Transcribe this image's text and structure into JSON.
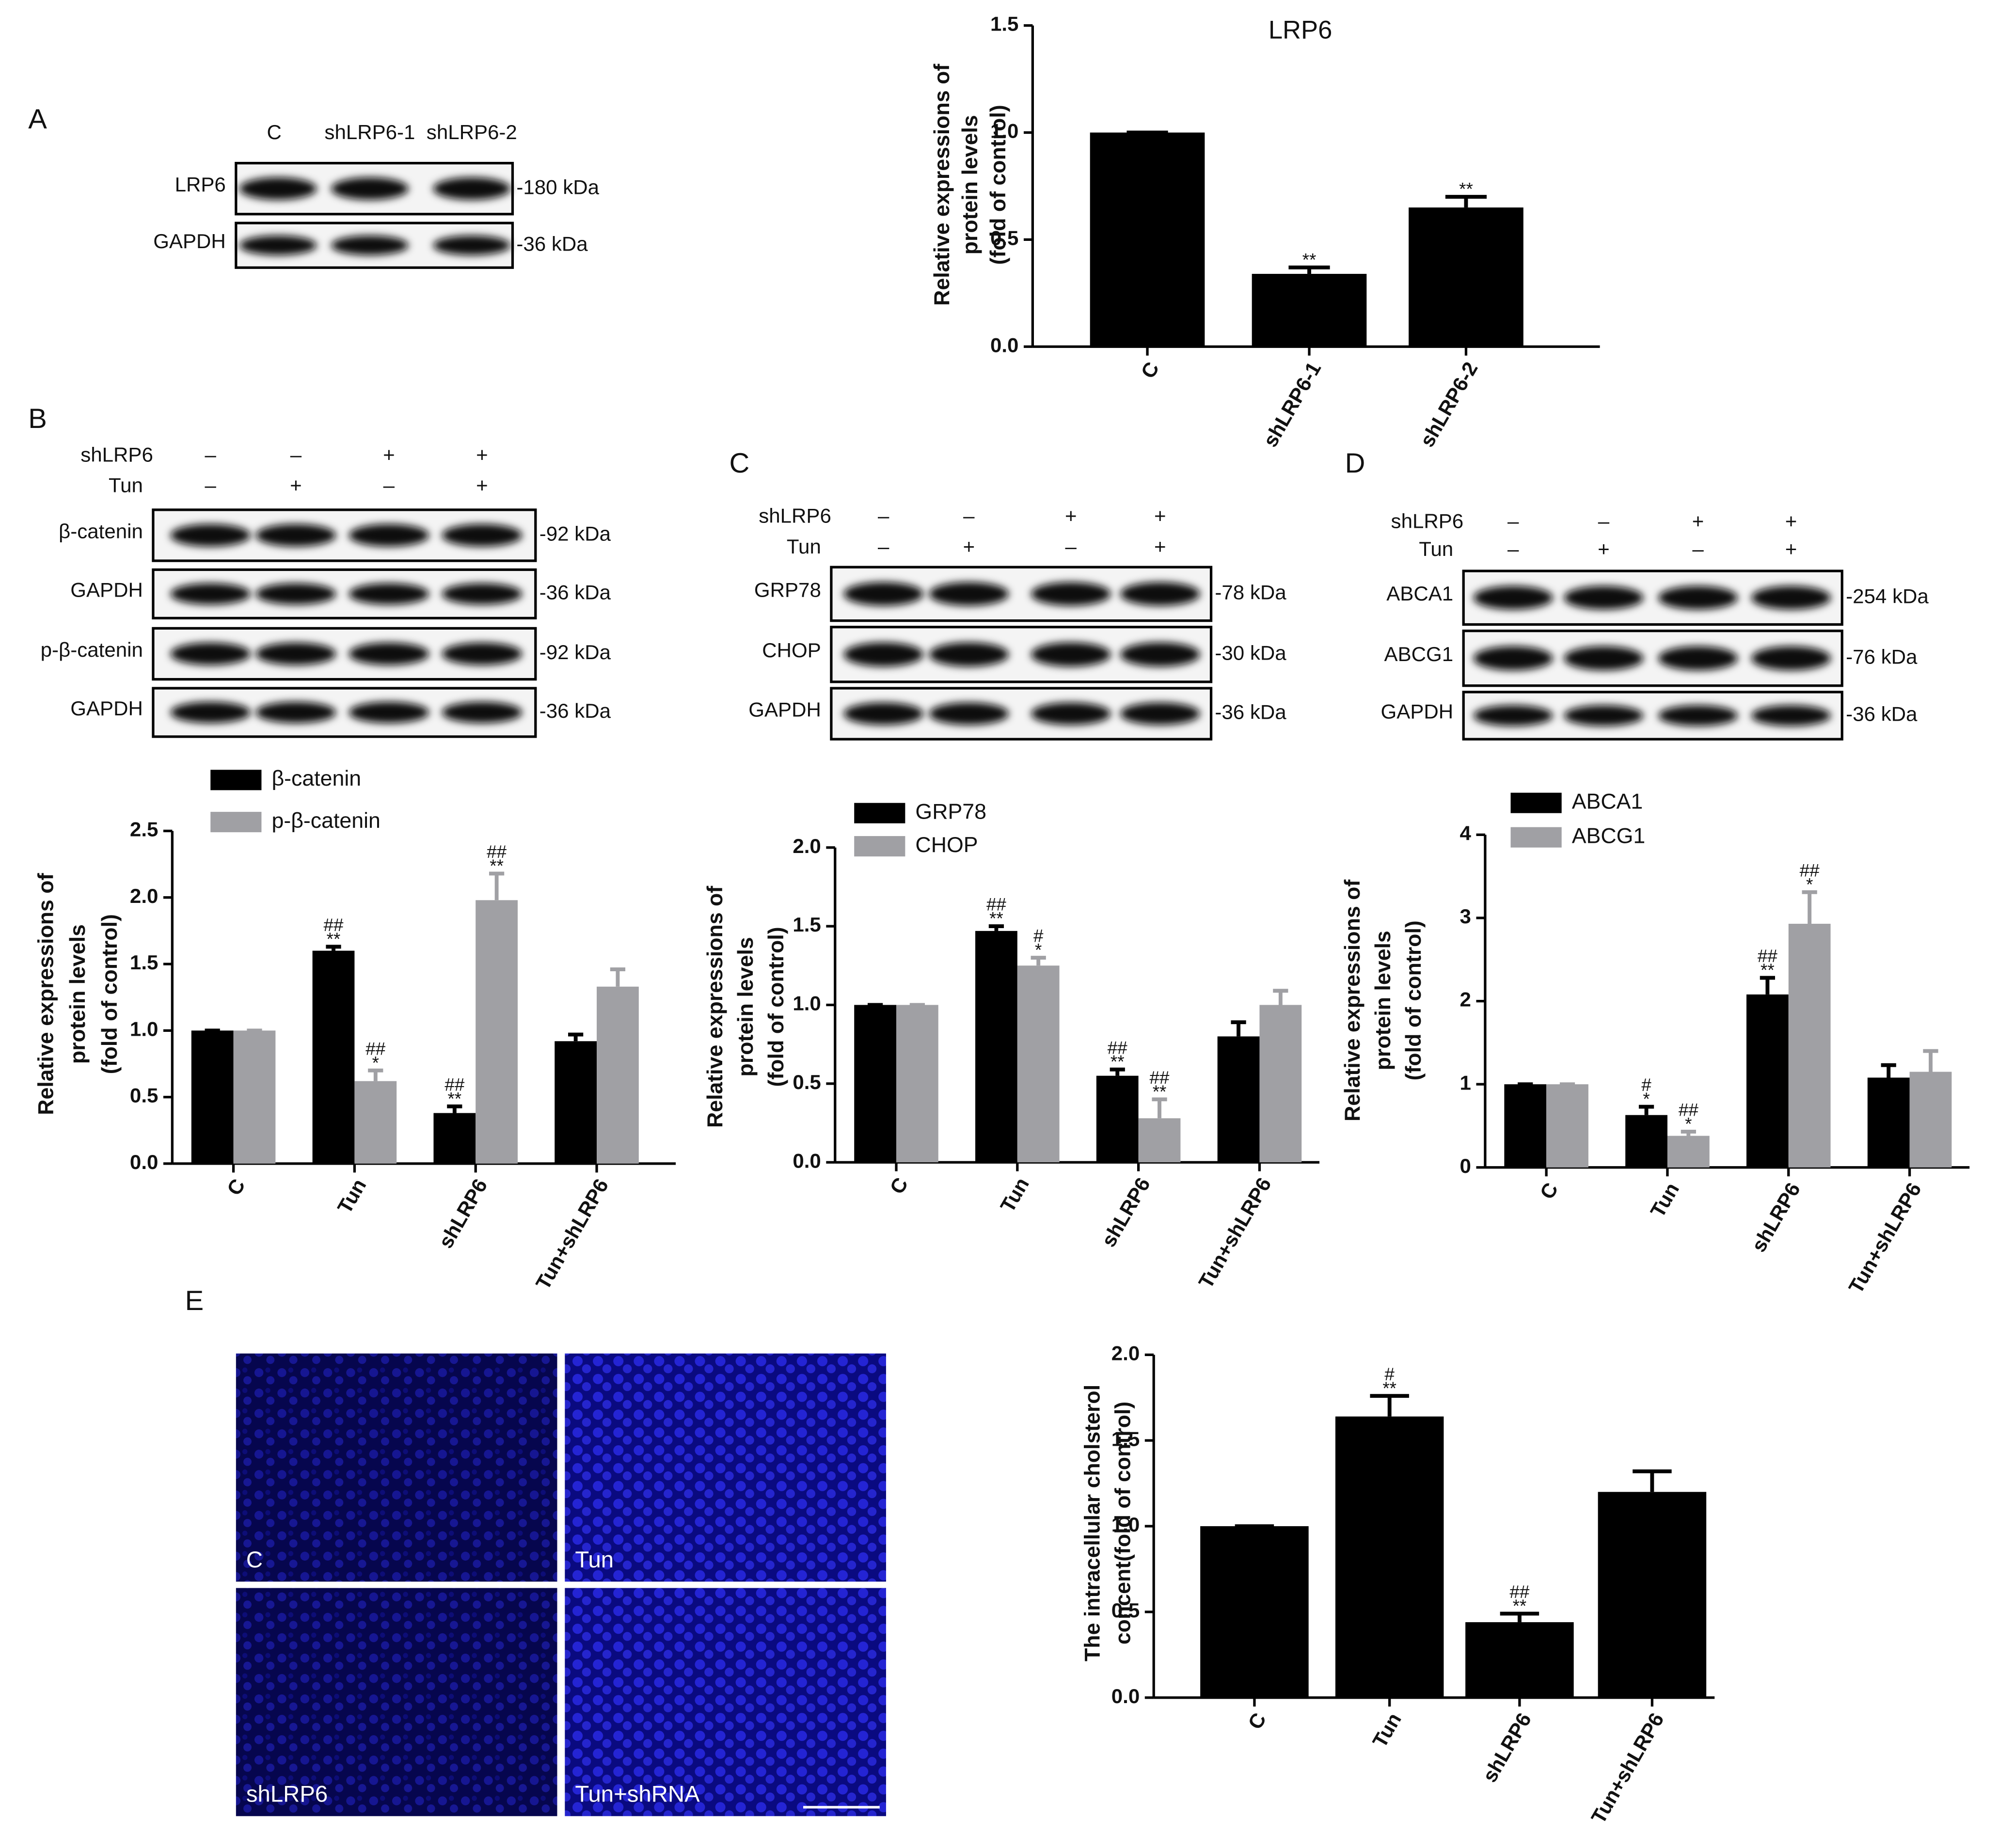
{
  "panel_labels": [
    "A",
    "B",
    "C",
    "D",
    "E"
  ],
  "blots": [
    {
      "lanes": [
        "C",
        "shLRP6-1",
        "shLRP6-2"
      ],
      "rows": [
        {
          "name": "LRP6",
          "size": "-180 kDa"
        },
        {
          "name": "GAPDH",
          "size": "-36 kDa"
        }
      ]
    },
    {
      "treatments": [
        {
          "name": "shLRP6",
          "signs": [
            "–",
            "–",
            "+",
            "+"
          ]
        },
        {
          "name": "Tun",
          "signs": [
            "–",
            "+",
            "–",
            "+"
          ]
        }
      ],
      "rows": [
        {
          "name": "β-catenin",
          "size": "-92 kDa"
        },
        {
          "name": "GAPDH",
          "size": "-36 kDa"
        },
        {
          "name": "p-β-catenin",
          "size": "-92 kDa"
        },
        {
          "name": "GAPDH",
          "size": "-36 kDa"
        }
      ]
    },
    {
      "treatments": [
        {
          "name": "shLRP6",
          "signs": [
            "–",
            "–",
            "+",
            "+"
          ]
        },
        {
          "name": "Tun",
          "signs": [
            "–",
            "+",
            "–",
            "+"
          ]
        }
      ],
      "rows": [
        {
          "name": "GRP78",
          "size": "-78 kDa"
        },
        {
          "name": "CHOP",
          "size": "-30 kDa"
        },
        {
          "name": "GAPDH",
          "size": "-36 kDa"
        }
      ]
    },
    {
      "treatments": [
        {
          "name": "shLRP6",
          "signs": [
            "–",
            "–",
            "+",
            "+"
          ]
        },
        {
          "name": "Tun",
          "signs": [
            "–",
            "+",
            "–",
            "+"
          ]
        }
      ],
      "rows": [
        {
          "name": "ABCA1",
          "size": "-254 kDa"
        },
        {
          "name": "ABCG1",
          "size": "-76 kDa"
        },
        {
          "name": "GAPDH",
          "size": "-36 kDa"
        }
      ]
    }
  ],
  "micrographs": [
    "C",
    "Tun",
    "shLRP6",
    "Tun+shRNA"
  ],
  "chart_data": [
    {
      "type": "bar",
      "title": "LRP6",
      "ylabel": [
        "Relative expressions of",
        "protein levels",
        "(fold of control)"
      ],
      "categories": [
        "C",
        "shLRP6-1",
        "shLRP6-2"
      ],
      "values": [
        1.0,
        0.34,
        0.65
      ],
      "errors": [
        0,
        0.03,
        0.05
      ],
      "annotations": [
        null,
        [
          "**"
        ],
        [
          "**"
        ]
      ],
      "color": "#000000",
      "ylim": [
        0,
        1.5
      ],
      "yticks": [
        {
          "value": 0,
          "label": "0.0"
        },
        {
          "value": 0.5,
          "label": "0.5"
        },
        {
          "value": 1,
          "label": "1.0"
        },
        {
          "value": 1.5,
          "label": "1.5"
        }
      ]
    },
    {
      "type": "bar",
      "ylabel": [
        "Relative expressions of",
        "protein levels",
        "(fold of control)"
      ],
      "categories": [
        "C",
        "Tun",
        "shLRP6",
        "Tun+shLRP6"
      ],
      "series": [
        {
          "name": "β-catenin",
          "color": "#000000",
          "values": [
            1.0,
            1.6,
            0.38,
            0.92
          ],
          "errors": [
            0,
            0.03,
            0.05,
            0.05
          ],
          "annotations": [
            null,
            [
              "##",
              "**"
            ],
            [
              "##",
              "**"
            ],
            null
          ]
        },
        {
          "name": "p-β-catenin",
          "color": "#a0a0a4",
          "values": [
            1.0,
            0.62,
            1.98,
            1.33
          ],
          "errors": [
            0,
            0.08,
            0.2,
            0.13
          ],
          "annotations": [
            null,
            [
              "##",
              "*"
            ],
            [
              "##",
              "**"
            ],
            null
          ]
        }
      ],
      "ylim": [
        0,
        2.5
      ],
      "yticks": [
        {
          "value": 0,
          "label": "0.0"
        },
        {
          "value": 0.5,
          "label": "0.5"
        },
        {
          "value": 1,
          "label": "1.0"
        },
        {
          "value": 1.5,
          "label": "1.5"
        },
        {
          "value": 2,
          "label": "2.0"
        },
        {
          "value": 2.5,
          "label": "2.5"
        }
      ]
    },
    {
      "type": "bar",
      "ylabel": [
        "Relative expressions of",
        "protein levels",
        "(fold of control)"
      ],
      "categories": [
        "C",
        "Tun",
        "shLRP6",
        "Tun+shLRP6"
      ],
      "series": [
        {
          "name": "GRP78",
          "color": "#000000",
          "values": [
            1.0,
            1.47,
            0.55,
            0.8
          ],
          "errors": [
            0,
            0.03,
            0.04,
            0.09
          ],
          "annotations": [
            null,
            [
              "##",
              "**"
            ],
            [
              "##",
              "**"
            ],
            null
          ]
        },
        {
          "name": "CHOP",
          "color": "#a0a0a4",
          "values": [
            1.0,
            1.25,
            0.28,
            1.0
          ],
          "errors": [
            0,
            0.05,
            0.12,
            0.09
          ],
          "annotations": [
            null,
            [
              "#",
              "*"
            ],
            [
              "##",
              "**"
            ],
            null
          ]
        }
      ],
      "ylim": [
        0,
        2
      ],
      "yticks": [
        {
          "value": 0,
          "label": "0.0"
        },
        {
          "value": 0.5,
          "label": "0.5"
        },
        {
          "value": 1,
          "label": "1.0"
        },
        {
          "value": 1.5,
          "label": "1.5"
        },
        {
          "value": 2,
          "label": "2.0"
        }
      ]
    },
    {
      "type": "bar",
      "ylabel": [
        "Relative expressions of",
        "protein levels",
        "(fold of control)"
      ],
      "categories": [
        "C",
        "Tun",
        "shLRP6",
        "Tun+shLRP6"
      ],
      "series": [
        {
          "name": "ABCA1",
          "color": "#000000",
          "values": [
            1.0,
            0.63,
            2.08,
            1.08
          ],
          "errors": [
            0,
            0.1,
            0.2,
            0.15
          ],
          "annotations": [
            null,
            [
              "#",
              "*"
            ],
            [
              "##",
              "**"
            ],
            null
          ]
        },
        {
          "name": "ABCG1",
          "color": "#a0a0a4",
          "values": [
            1.0,
            0.38,
            2.93,
            1.15
          ],
          "errors": [
            0,
            0.05,
            0.38,
            0.25
          ],
          "annotations": [
            null,
            [
              "##",
              "*"
            ],
            [
              "##",
              "*"
            ],
            null
          ]
        }
      ],
      "ylim": [
        0,
        4
      ],
      "yticks": [
        0,
        1,
        2,
        3,
        4
      ]
    },
    {
      "type": "bar",
      "ylabel": [
        "The intracellular cholsterol",
        "concent(fold of control)"
      ],
      "categories": [
        "C",
        "Tun",
        "shLRP6",
        "Tun+shLRP6"
      ],
      "values": [
        1.0,
        1.64,
        0.44,
        1.2
      ],
      "errors": [
        0,
        0.12,
        0.05,
        0.12
      ],
      "annotations": [
        null,
        [
          "#",
          "**"
        ],
        [
          "##",
          "**"
        ],
        null
      ],
      "color": "#000000",
      "ylim": [
        0,
        2
      ],
      "yticks": [
        {
          "value": 0,
          "label": "0.0"
        },
        {
          "value": 0.5,
          "label": "0.5"
        },
        {
          "value": 1,
          "label": "1.0"
        },
        {
          "value": 1.5,
          "label": "1.5"
        },
        {
          "value": 2,
          "label": "2.0"
        }
      ]
    }
  ]
}
